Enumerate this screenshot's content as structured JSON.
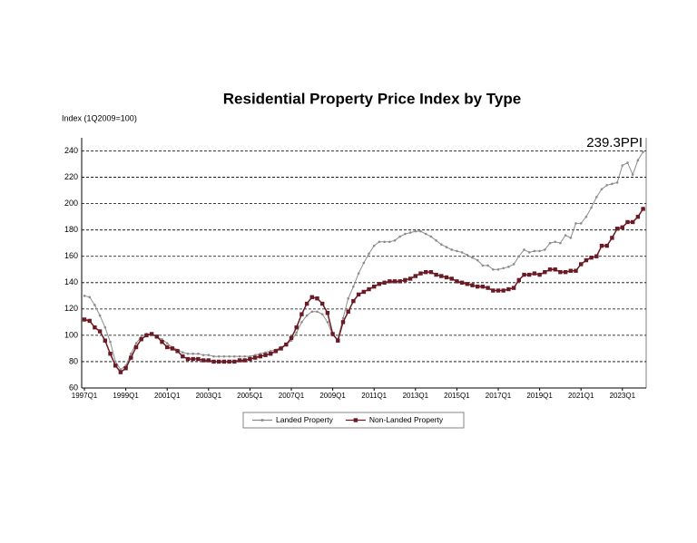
{
  "chart_data": {
    "type": "line",
    "title": "Residential Property Price Index by Type",
    "y_label": "Index (1Q2009=100)",
    "annotation": "239.3PPI",
    "categories": [
      "1997Q1",
      null,
      null,
      null,
      null,
      null,
      null,
      null,
      "1999Q1",
      null,
      null,
      null,
      null,
      null,
      null,
      null,
      "2001Q1",
      null,
      null,
      null,
      null,
      null,
      null,
      null,
      "2003Q1",
      null,
      null,
      null,
      null,
      null,
      null,
      null,
      "2005Q1",
      null,
      null,
      null,
      null,
      null,
      null,
      null,
      "2007Q1",
      null,
      null,
      null,
      null,
      null,
      null,
      null,
      "2009Q1",
      null,
      null,
      null,
      null,
      null,
      null,
      null,
      "2011Q1",
      null,
      null,
      null,
      null,
      null,
      null,
      null,
      "2013Q1",
      null,
      null,
      null,
      null,
      null,
      null,
      null,
      "2015Q1",
      null,
      null,
      null,
      null,
      null,
      null,
      null,
      "2017Q1",
      null,
      null,
      null,
      null,
      null,
      null,
      null,
      "2019Q1",
      null,
      null,
      null,
      null,
      null,
      null,
      null,
      "2021Q1",
      null,
      null,
      null,
      null,
      null,
      null,
      null,
      "2023Q1",
      null,
      null,
      null,
      null
    ],
    "series": [
      {
        "name": "Landed Property",
        "color": "#8c8c8c",
        "marker": "dot",
        "values": [
          130,
          129,
          123,
          115,
          106,
          95,
          80,
          74,
          77,
          86,
          94,
          99,
          101,
          101,
          99,
          97,
          94,
          91,
          89,
          87,
          86,
          86,
          86,
          85,
          85,
          84,
          84,
          84,
          84,
          84,
          84,
          84,
          84,
          85,
          86,
          87,
          88,
          89,
          91,
          93,
          96,
          102,
          110,
          115,
          118,
          118,
          116,
          110,
          100,
          97,
          113,
          128,
          137,
          147,
          155,
          162,
          168,
          171,
          171,
          171,
          172,
          175,
          177,
          178,
          179,
          179,
          177,
          175,
          172,
          169,
          167,
          165,
          164,
          163,
          161,
          159,
          157,
          153,
          153,
          150,
          150,
          151,
          152,
          154,
          160,
          165,
          163,
          164,
          164,
          165,
          170,
          171,
          170,
          176,
          174,
          185,
          185,
          190,
          197,
          205,
          211,
          214,
          215,
          216,
          229,
          231,
          222,
          233,
          239.3
        ]
      },
      {
        "name": "Non-Landed Property",
        "color": "#6b1a24",
        "marker": "square",
        "values": [
          112,
          111,
          106,
          103,
          96,
          86,
          77,
          72,
          75,
          83,
          91,
          97,
          100,
          101,
          99,
          95,
          91,
          90,
          88,
          84,
          82,
          82,
          82,
          81,
          81,
          80,
          80,
          80,
          80,
          80,
          81,
          81,
          82,
          83,
          84,
          85,
          86,
          88,
          90,
          93,
          98,
          106,
          116,
          124,
          129,
          128,
          124,
          117,
          101,
          96,
          110,
          118,
          126,
          131,
          133,
          135,
          137,
          139,
          140,
          141,
          141,
          141,
          142,
          143,
          145,
          147,
          148,
          148,
          146,
          145,
          144,
          143,
          141,
          140,
          139,
          138,
          137,
          137,
          136,
          134,
          134,
          134,
          135,
          136,
          142,
          146,
          146,
          147,
          146,
          148,
          150,
          150,
          148,
          148,
          149,
          149,
          154,
          157,
          159,
          160,
          168,
          168,
          174,
          181,
          182,
          186,
          186,
          190,
          196
        ]
      }
    ],
    "ylim": [
      60,
      250
    ],
    "yticks": [
      60,
      80,
      100,
      120,
      140,
      160,
      180,
      200,
      220,
      240
    ],
    "grid": true,
    "legend": "bottom"
  }
}
